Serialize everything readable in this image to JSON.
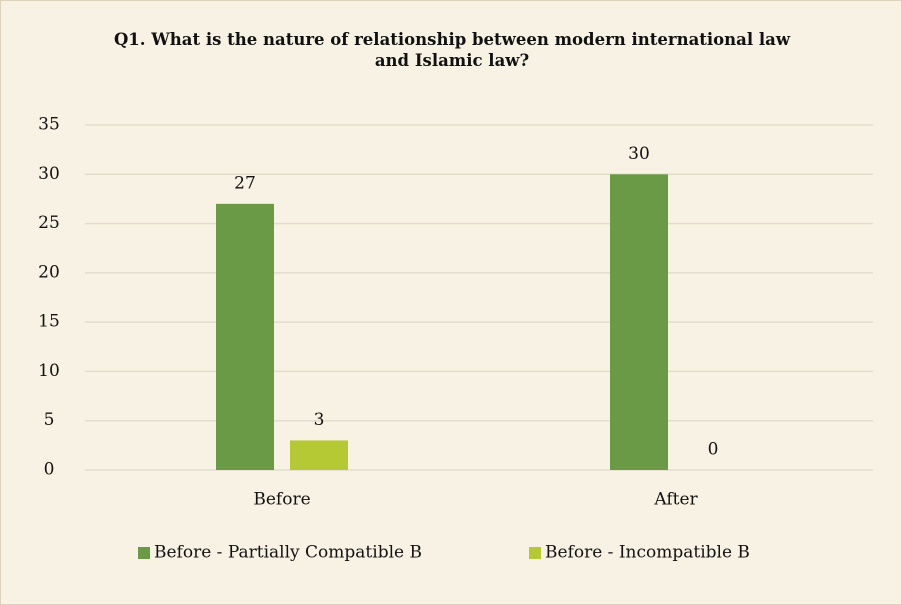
{
  "chart_data": {
    "type": "bar",
    "title": "Q1. What is the nature of relationship between modern international law and Islamic law?",
    "categories": [
      "Before",
      "After"
    ],
    "series": [
      {
        "name": "Before - Partially Compatible B",
        "color": "#6a9a45",
        "values": [
          27,
          30
        ]
      },
      {
        "name": "Before - Incompatible B",
        "color": "#b5c934",
        "values": [
          3,
          0
        ]
      }
    ],
    "ylim": [
      0,
      35
    ],
    "yticks": [
      0,
      5,
      10,
      15,
      20,
      25,
      30,
      35
    ],
    "grid": true,
    "legend": "bottom",
    "data_labels": true
  }
}
